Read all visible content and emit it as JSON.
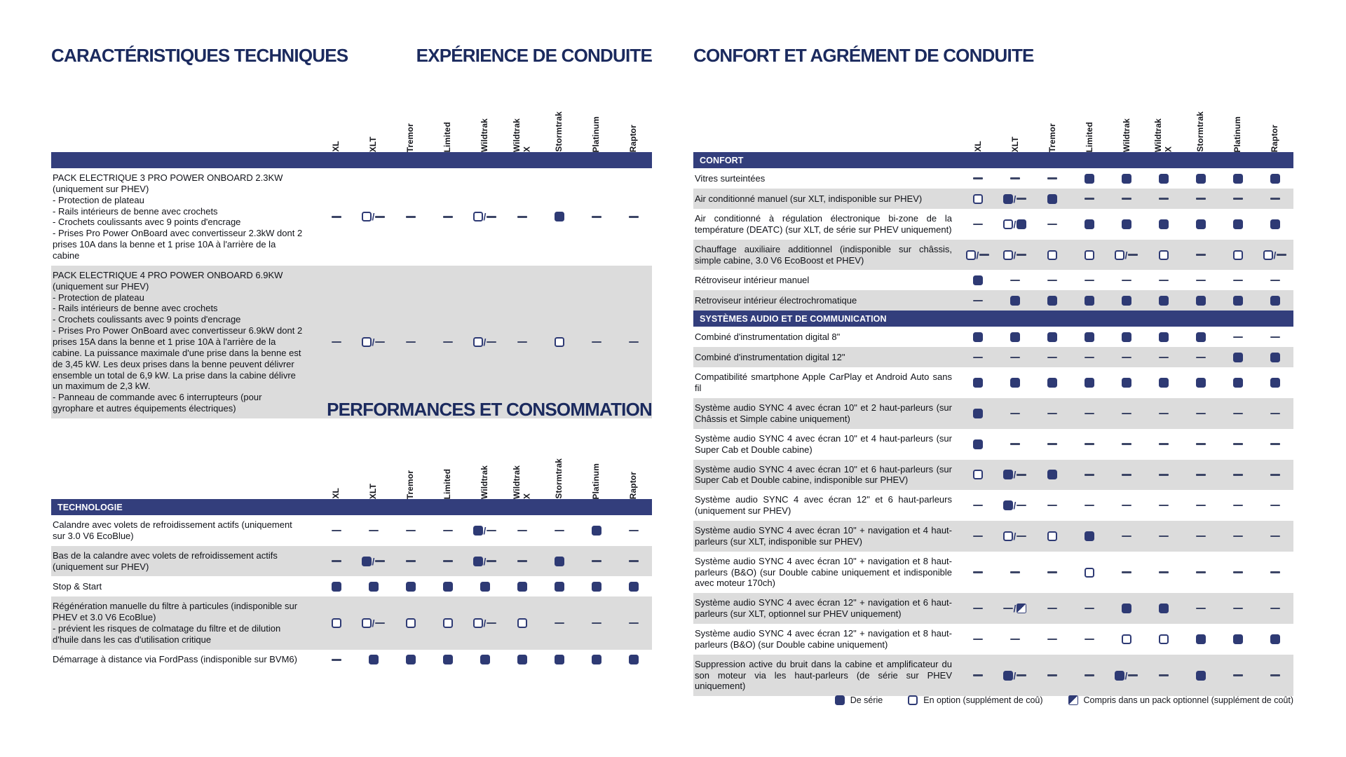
{
  "titles": {
    "caracteristiques": "CARACTÉRISTIQUES TECHNIQUES",
    "experience": "EXPÉRIENCE DE CONDUITE",
    "performances": "PERFORMANCES ET CONSOMMATION",
    "confort": "CONFORT ET AGRÉMENT DE CONDUITE"
  },
  "trim_columns": [
    "XL",
    "XLT",
    "Tremor",
    "Limited",
    "Wildtrak",
    "Wildtrak\nX",
    "Stormtrak",
    "Platinum",
    "Raptor"
  ],
  "tables": {
    "experience": {
      "sections": [
        {
          "label": "",
          "rows": [
            {
              "label": "PACK ELECTRIQUE 3 PRO POWER ONBOARD 2.3KW (uniquement sur PHEV)\n- Protection de plateau\n- Rails intérieurs de benne avec crochets\n- Crochets coulissants avec 9 points d'encrage\n- Prises Pro Power OnBoard avec convertisseur 2.3kW dont 2 prises 10A dans la benne et 1 prise 10A à l'arrière de la cabine",
              "cells": [
                "-",
                "o/-",
                "-",
                "-",
                "o/-",
                "-",
                "s",
                "-",
                "-"
              ]
            },
            {
              "label": "PACK ELECTRIQUE 4 PRO POWER ONBOARD 6.9KW (uniquement sur PHEV)\n- Protection de plateau\n- Rails intérieurs de benne avec crochets\n- Crochets coulissants avec 9 points d'encrage\n- Prises Pro Power OnBoard avec convertisseur 6.9kW dont 2 prises 15A dans la benne et 1 prise 10A à l'arrière de la cabine. La puissance maximale d'une prise dans la benne est de 3,45 kW. Les deux prises dans la benne peuvent délivrer ensemble un total de 6,9 kW. La prise dans la cabine délivre un maximum de 2,3 kW.\n- Panneau de commande avec 6 interrupteurs (pour gyrophare et autres équipements électriques)",
              "cells": [
                "-",
                "o/-",
                "-",
                "-",
                "o/-",
                "-",
                "o",
                "-",
                "-"
              ]
            }
          ]
        }
      ]
    },
    "performances": {
      "sections": [
        {
          "label": "TECHNOLOGIE",
          "rows": [
            {
              "label": "Calandre avec volets de refroidissement actifs (uniquement sur 3.0 V6 EcoBlue)",
              "cells": [
                "-",
                "-",
                "-",
                "-",
                "s/-",
                "-",
                "-",
                "s",
                "-"
              ]
            },
            {
              "label": "Bas de la calandre avec volets de refroidissement actifs (uniquement sur PHEV)",
              "cells": [
                "-",
                "s/-",
                "-",
                "-",
                "s/-",
                "-",
                "s",
                "-",
                "-"
              ]
            },
            {
              "label": "Stop & Start",
              "cells": [
                "s",
                "s",
                "s",
                "s",
                "s",
                "s",
                "s",
                "s",
                "s"
              ]
            },
            {
              "label": "Régénération manuelle du filtre à particules (indisponible sur PHEV et 3.0 V6 EcoBlue)\n- prévient les risques de colmatage du filtre et de dilution d'huile dans les cas d'utilisation critique",
              "cells": [
                "o",
                "o/-",
                "o",
                "o",
                "o/-",
                "o",
                "-",
                "-",
                "-"
              ]
            },
            {
              "label": "Démarrage à distance via FordPass (indisponible sur BVM6)",
              "cells": [
                "-",
                "s",
                "s",
                "s",
                "s",
                "s",
                "s",
                "s",
                "s"
              ]
            }
          ]
        }
      ]
    },
    "confort": {
      "sections": [
        {
          "label": "CONFORT",
          "rows": [
            {
              "label": "Vitres surteintées",
              "cells": [
                "-",
                "-",
                "-",
                "s",
                "s",
                "s",
                "s",
                "s",
                "s"
              ]
            },
            {
              "label": "Air conditionné manuel (sur XLT, indisponible sur PHEV)",
              "cells": [
                "o",
                "s/-",
                "s",
                "-",
                "-",
                "-",
                "-",
                "-",
                "-"
              ]
            },
            {
              "label": "Air conditionné à régulation électronique bi-zone de la température (DEATC) (sur XLT, de série sur PHEV uniquement)",
              "cells": [
                "-",
                "o/s",
                "-",
                "s",
                "s",
                "s",
                "s",
                "s",
                "s"
              ]
            },
            {
              "label": "Chauffage auxiliaire additionnel (indisponible sur châssis, simple cabine, 3.0 V6 EcoBoost et PHEV)",
              "cells": [
                "o/-",
                "o/-",
                "o",
                "o",
                "o/-",
                "o",
                "-",
                "o",
                "o/-"
              ]
            },
            {
              "label": "Rétroviseur intérieur manuel",
              "cells": [
                "s",
                "-",
                "-",
                "-",
                "-",
                "-",
                "-",
                "-",
                "-"
              ]
            },
            {
              "label": "Retroviseur intérieur électrochromatique",
              "cells": [
                "-",
                "s",
                "s",
                "s",
                "s",
                "s",
                "s",
                "s",
                "s"
              ]
            }
          ]
        },
        {
          "label": "SYSTÈMES AUDIO ET DE COMMUNICATION",
          "rows": [
            {
              "label": "Combiné d'instrumentation digital 8\"",
              "cells": [
                "s",
                "s",
                "s",
                "s",
                "s",
                "s",
                "s",
                "-",
                "-"
              ]
            },
            {
              "label": "Combiné d'instrumentation digital 12\"",
              "cells": [
                "-",
                "-",
                "-",
                "-",
                "-",
                "-",
                "-",
                "s",
                "s"
              ]
            },
            {
              "label": "Compatibilité smartphone Apple CarPlay et Android Auto sans fil",
              "cells": [
                "s",
                "s",
                "s",
                "s",
                "s",
                "s",
                "s",
                "s",
                "s"
              ]
            },
            {
              "label": "Système audio SYNC 4 avec écran 10\" et 2 haut-parleurs (sur Châssis et Simple cabine uniquement)",
              "cells": [
                "s",
                "-",
                "-",
                "-",
                "-",
                "-",
                "-",
                "-",
                "-"
              ]
            },
            {
              "label": "Système audio SYNC 4 avec écran 10\" et 4 haut-parleurs (sur Super Cab et Double cabine)",
              "cells": [
                "s",
                "-",
                "-",
                "-",
                "-",
                "-",
                "-",
                "-",
                "-"
              ]
            },
            {
              "label": "Système audio SYNC 4 avec écran 10\" et 6 haut-parleurs (sur Super Cab et Double cabine, indisponible sur PHEV)",
              "cells": [
                "o",
                "s/-",
                "s",
                "-",
                "-",
                "-",
                "-",
                "-",
                "-"
              ]
            },
            {
              "label": "Système audio SYNC 4 avec écran 12\" et 6 haut-parleurs (uniquement sur PHEV)",
              "cells": [
                "-",
                "s/-",
                "-",
                "-",
                "-",
                "-",
                "-",
                "-",
                "-"
              ]
            },
            {
              "label": "Système audio SYNC 4 avec écran 10\" + navigation et 4 haut-parleurs (sur XLT, indisponible sur PHEV)",
              "cells": [
                "-",
                "o/-",
                "o",
                "s",
                "-",
                "-",
                "-",
                "-",
                "-"
              ]
            },
            {
              "label": "Système audio SYNC 4 avec écran 10\" + navigation et 8 haut-parleurs (B&O) (sur Double cabine uniquement et indisponible avec moteur 170ch)",
              "cells": [
                "-",
                "-",
                "-",
                "o",
                "-",
                "-",
                "-",
                "-",
                "-"
              ]
            },
            {
              "label": "Système audio SYNC 4 avec écran 12\" + navigation et 6 haut-parleurs (sur XLT, optionnel sur PHEV uniquement)",
              "cells": [
                "-",
                "-/p",
                "-",
                "-",
                "s",
                "s",
                "-",
                "-",
                "-"
              ]
            },
            {
              "label": "Système audio SYNC 4 avec écran 12\" + navigation et 8 haut-parleurs (B&O) (sur Double cabine uniquement)",
              "cells": [
                "-",
                "-",
                "-",
                "-",
                "o",
                "o",
                "s",
                "s",
                "s"
              ]
            },
            {
              "label": "Suppression active du bruit dans la cabine et amplificateur du son moteur via les haut-parleurs (de série sur PHEV uniquement)",
              "cells": [
                "-",
                "s/-",
                "-",
                "-",
                "s/-",
                "-",
                "s",
                "-",
                "-"
              ]
            }
          ]
        }
      ]
    }
  },
  "legend": {
    "items": [
      {
        "symbol": "s",
        "label": "De série"
      },
      {
        "symbol": "o",
        "label": "En option (supplément de coû)"
      },
      {
        "symbol": "p",
        "label": "Compris dans un pack optionnel (supplément de coût)"
      }
    ]
  },
  "colors": {
    "section_bar": "#333e7c",
    "title": "#1b2a5e",
    "square": "#2e3a74",
    "row_alternate": "#dcdcdc"
  }
}
